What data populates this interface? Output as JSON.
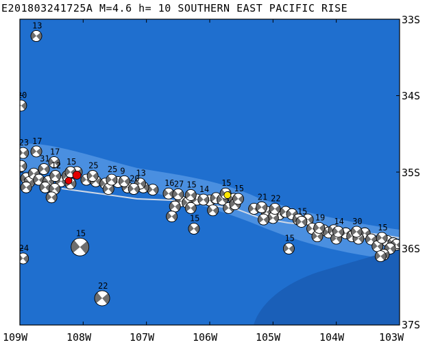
{
  "title": "E201803241725A M=4.6 h= 10 SOUTHERN EAST PACIFIC RISE",
  "lat_labels": [
    "33S",
    "34S",
    "35S",
    "36S",
    "37S"
  ],
  "lon_labels": [
    "109W",
    "108W",
    "107W",
    "106W",
    "105W",
    "104W",
    "103W"
  ],
  "colors": {
    "ocean": "#1f6fcf",
    "shallow": "#4a8fe0",
    "deep": "#1a5fb8",
    "plate_boundary": "#cfd8e6",
    "beachball_dark": "#6e6e6e",
    "beachball_light": "#ffffff",
    "target_event": "#ffe600",
    "highlight_event": "#e00000"
  },
  "events": [
    {
      "label": "13",
      "lon": -108.74,
      "lat": -33.22
    },
    {
      "label": "20",
      "lon": -108.98,
      "lat": -34.13
    },
    {
      "label": "23",
      "lon": -108.95,
      "lat": -34.75
    },
    {
      "label": "17",
      "lon": -108.74,
      "lat": -34.73
    },
    {
      "label": "17",
      "lon": -108.46,
      "lat": -34.87
    },
    {
      "label": "15",
      "lon": -108.2,
      "lat": -35.0
    },
    {
      "label": "31",
      "lon": -108.62,
      "lat": -34.96
    },
    {
      "label": "12",
      "lon": -108.44,
      "lat": -35.05
    },
    {
      "label": "25",
      "lon": -107.85,
      "lat": -35.05
    },
    {
      "label": "25",
      "lon": -107.55,
      "lat": -35.1
    },
    {
      "label": "9",
      "lon": -107.35,
      "lat": -35.12
    },
    {
      "label": "13",
      "lon": -107.1,
      "lat": -35.15
    },
    {
      "label": "20",
      "lon": -107.2,
      "lat": -35.22
    },
    {
      "label": "16",
      "lon": -106.65,
      "lat": -35.28
    },
    {
      "label": "27",
      "lon": -106.5,
      "lat": -35.29
    },
    {
      "label": "15",
      "lon": -106.3,
      "lat": -35.3
    },
    {
      "label": "14",
      "lon": -106.1,
      "lat": -35.36
    },
    {
      "label": "15",
      "lon": -105.75,
      "lat": -35.28
    },
    {
      "label": "15",
      "lon": -105.55,
      "lat": -35.35
    },
    {
      "label": "21",
      "lon": -105.18,
      "lat": -35.46
    },
    {
      "label": "22",
      "lon": -104.97,
      "lat": -35.48
    },
    {
      "label": "15",
      "lon": -104.55,
      "lat": -35.65
    },
    {
      "label": "19",
      "lon": -104.27,
      "lat": -35.73
    },
    {
      "label": "14",
      "lon": -103.97,
      "lat": -35.78
    },
    {
      "label": "30",
      "lon": -103.68,
      "lat": -35.78
    },
    {
      "label": "15",
      "lon": -103.28,
      "lat": -35.86
    },
    {
      "label": "15",
      "lon": -106.25,
      "lat": -35.74
    },
    {
      "label": "15",
      "lon": -104.75,
      "lat": -36.0
    },
    {
      "label": "15",
      "lon": -108.05,
      "lat": -35.98
    },
    {
      "label": "24",
      "lon": -108.95,
      "lat": -36.13
    },
    {
      "label": "22",
      "lon": -107.7,
      "lat": -36.65
    }
  ],
  "small_events": [
    {
      "lon": -108.98,
      "lat": -34.92
    },
    {
      "lon": -108.9,
      "lat": -35.08
    },
    {
      "lon": -108.85,
      "lat": -35.13
    },
    {
      "lon": -108.78,
      "lat": -35.02
    },
    {
      "lon": -108.7,
      "lat": -35.1
    },
    {
      "lon": -108.55,
      "lat": -35.12
    },
    {
      "lon": -108.35,
      "lat": -35.12
    },
    {
      "lon": -108.25,
      "lat": -35.05
    },
    {
      "lon": -108.1,
      "lat": -35.0
    },
    {
      "lon": -107.95,
      "lat": -35.1
    },
    {
      "lon": -107.8,
      "lat": -35.12
    },
    {
      "lon": -107.65,
      "lat": -35.15
    },
    {
      "lon": -107.45,
      "lat": -35.13
    },
    {
      "lon": -107.3,
      "lat": -35.2
    },
    {
      "lon": -106.9,
      "lat": -35.23
    },
    {
      "lon": -106.45,
      "lat": -35.38
    },
    {
      "lon": -106.35,
      "lat": -35.4
    },
    {
      "lon": -106.2,
      "lat": -35.36
    },
    {
      "lon": -106.0,
      "lat": -35.37
    },
    {
      "lon": -105.9,
      "lat": -35.34
    },
    {
      "lon": -105.8,
      "lat": -35.36
    },
    {
      "lon": -105.62,
      "lat": -35.35
    },
    {
      "lon": -105.3,
      "lat": -35.48
    },
    {
      "lon": -105.1,
      "lat": -35.52
    },
    {
      "lon": -104.9,
      "lat": -35.55
    },
    {
      "lon": -104.8,
      "lat": -35.52
    },
    {
      "lon": -104.7,
      "lat": -35.55
    },
    {
      "lon": -104.45,
      "lat": -35.62
    },
    {
      "lon": -104.38,
      "lat": -35.74
    },
    {
      "lon": -104.2,
      "lat": -35.76
    },
    {
      "lon": -104.12,
      "lat": -35.79
    },
    {
      "lon": -104.04,
      "lat": -35.76
    },
    {
      "lon": -103.85,
      "lat": -35.8
    },
    {
      "lon": -103.75,
      "lat": -35.84
    },
    {
      "lon": -103.55,
      "lat": -35.8
    },
    {
      "lon": -103.45,
      "lat": -35.88
    },
    {
      "lon": -103.2,
      "lat": -35.9
    },
    {
      "lon": -103.1,
      "lat": -35.93
    },
    {
      "lon": -103.05,
      "lat": -35.95
    },
    {
      "lon": -108.9,
      "lat": -35.2
    },
    {
      "lon": -108.6,
      "lat": -35.2
    },
    {
      "lon": -108.45,
      "lat": -35.22
    },
    {
      "lon": -108.2,
      "lat": -35.15
    },
    {
      "lon": -107.6,
      "lat": -35.22
    },
    {
      "lon": -107.05,
      "lat": -35.2
    },
    {
      "lon": -106.55,
      "lat": -35.45
    },
    {
      "lon": -106.3,
      "lat": -35.47
    },
    {
      "lon": -105.95,
      "lat": -35.5
    },
    {
      "lon": -105.7,
      "lat": -35.47
    },
    {
      "lon": -105.6,
      "lat": -35.42
    },
    {
      "lon": -105.0,
      "lat": -35.6
    },
    {
      "lon": -104.6,
      "lat": -35.62
    },
    {
      "lon": -104.3,
      "lat": -35.84
    },
    {
      "lon": -104.0,
      "lat": -35.87
    },
    {
      "lon": -103.65,
      "lat": -35.87
    },
    {
      "lon": -103.35,
      "lat": -35.97
    },
    {
      "lon": -103.15,
      "lat": -36.0
    },
    {
      "lon": -103.25,
      "lat": -36.08
    },
    {
      "lon": -108.5,
      "lat": -35.33
    },
    {
      "lon": -106.6,
      "lat": -35.58
    },
    {
      "lon": -105.15,
      "lat": -35.62
    },
    {
      "lon": -103.3,
      "lat": -36.1
    }
  ],
  "target_event": {
    "lon": -105.72,
    "lat": -35.3
  },
  "highlight_event": {
    "lon": -108.1,
    "lat": -35.04
  }
}
